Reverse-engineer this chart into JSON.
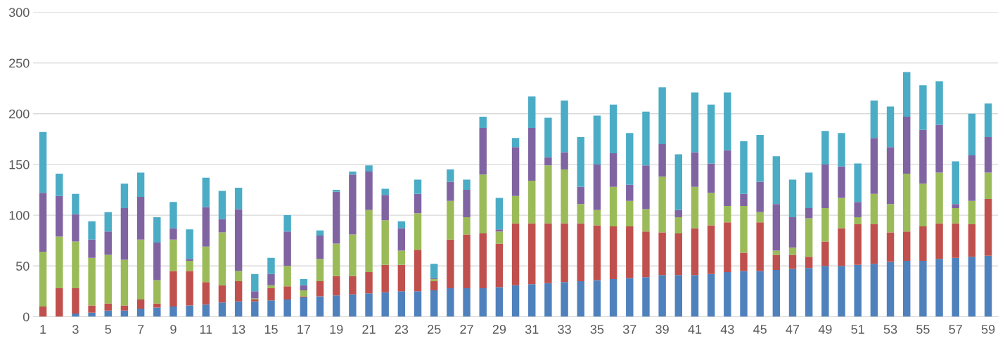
{
  "chart_data": {
    "type": "bar",
    "stacked": true,
    "categories": [
      "1",
      null,
      "3",
      null,
      "5",
      null,
      "7",
      null,
      "9",
      null,
      "11",
      null,
      "13",
      null,
      "15",
      null,
      "17",
      null,
      "19",
      null,
      "21",
      null,
      "23",
      null,
      "25",
      null,
      "27",
      null,
      "29",
      null,
      "31",
      null,
      "33",
      null,
      "35",
      null,
      "37",
      null,
      "39",
      null,
      "41",
      null,
      "43",
      null,
      "45",
      null,
      "47",
      null,
      "49",
      null,
      "51",
      null,
      "53",
      null,
      "55",
      null,
      "57",
      null,
      "59"
    ],
    "series": [
      {
        "color": "#4f81bd",
        "values": [
          0,
          0,
          3,
          4,
          6,
          6,
          8,
          9,
          10,
          11,
          12,
          14,
          15,
          15,
          16,
          17,
          19,
          20,
          21,
          22,
          23,
          24,
          25,
          25,
          26,
          28,
          28,
          28,
          29,
          31,
          32,
          33,
          34,
          35,
          36,
          37,
          38,
          39,
          41,
          41,
          41,
          42,
          44,
          45,
          45,
          46,
          47,
          48,
          50,
          50,
          51,
          52,
          54,
          55,
          55,
          57,
          58,
          59,
          60
        ]
      },
      {
        "color": "#c0504d",
        "values": [
          10,
          28,
          25,
          7,
          7,
          5,
          9,
          4,
          35,
          34,
          22,
          17,
          20,
          2,
          12,
          13,
          1,
          15,
          19,
          18,
          21,
          27,
          26,
          41,
          9,
          48,
          53,
          54,
          43,
          61,
          60,
          59,
          58,
          57,
          54,
          52,
          51,
          45,
          42,
          41,
          46,
          48,
          49,
          18,
          48,
          15,
          14,
          11,
          24,
          37,
          40,
          39,
          29,
          29,
          34,
          35,
          34,
          32,
          56
        ]
      },
      {
        "color": "#9bbb59",
        "values": [
          54,
          51,
          46,
          47,
          48,
          45,
          59,
          23,
          31,
          10,
          35,
          52,
          10,
          1,
          3,
          20,
          6,
          22,
          32,
          41,
          61,
          44,
          14,
          36,
          2,
          38,
          17,
          58,
          12,
          27,
          42,
          57,
          53,
          19,
          15,
          39,
          25,
          22,
          55,
          16,
          41,
          32,
          16,
          46,
          10,
          4,
          7,
          38,
          33,
          30,
          7,
          30,
          28,
          57,
          42,
          50,
          15,
          23,
          26
        ]
      },
      {
        "color": "#8064a2",
        "values": [
          58,
          40,
          27,
          18,
          23,
          51,
          42,
          37,
          11,
          2,
          39,
          13,
          61,
          7,
          11,
          34,
          5,
          23,
          51,
          59,
          38,
          25,
          22,
          19,
          1,
          19,
          27,
          46,
          2,
          48,
          52,
          8,
          17,
          17,
          45,
          33,
          16,
          43,
          32,
          7,
          34,
          29,
          55,
          12,
          30,
          46,
          30,
          10,
          43,
          31,
          15,
          55,
          56,
          56,
          53,
          47,
          4,
          45,
          35
        ]
      },
      {
        "color": "#4bacc6",
        "values": [
          60,
          22,
          20,
          18,
          19,
          24,
          24,
          25,
          26,
          29,
          29,
          28,
          21,
          17,
          16,
          16,
          6,
          5,
          2,
          3,
          6,
          6,
          7,
          14,
          14,
          12,
          10,
          11,
          31,
          9,
          31,
          39,
          51,
          49,
          48,
          48,
          51,
          53,
          56,
          55,
          59,
          58,
          57,
          52,
          46,
          47,
          37,
          35,
          33,
          33,
          38,
          37,
          40,
          44,
          44,
          43,
          42,
          41,
          33
        ]
      }
    ],
    "ylim": [
      0,
      300
    ],
    "yticks": [
      0,
      50,
      100,
      150,
      200,
      250,
      300
    ],
    "grid": "y",
    "legend": false
  }
}
